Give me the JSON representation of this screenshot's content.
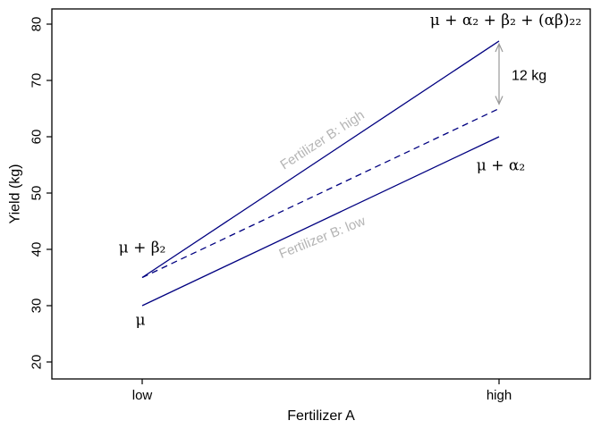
{
  "chart_data": {
    "type": "line",
    "title": "",
    "xlabel": "Fertilizer A",
    "ylabel": "Yield (kg)",
    "x_categories": [
      "low",
      "high"
    ],
    "ylim": [
      20,
      80
    ],
    "yticks": [
      20,
      30,
      40,
      50,
      60,
      70,
      80
    ],
    "grid": false,
    "legend": "none (labels drawn inline)",
    "line_color": "#000080",
    "axis_color": "#000000",
    "inline_label_gray": "#b4b4b4",
    "arrow_gray": "#999999",
    "series": [
      {
        "name": "fertilizer-b-high-observed",
        "values": [
          35,
          77
        ],
        "style": "solid",
        "color": "#000080"
      },
      {
        "name": "additive-model-expectation",
        "values": [
          35,
          65
        ],
        "style": "dashed",
        "color": "#000080"
      },
      {
        "name": "fertilizer-b-low-observed",
        "values": [
          30,
          60
        ],
        "style": "solid",
        "color": "#000080"
      }
    ],
    "interaction_effect": {
      "value": 12,
      "unit": "kg",
      "between": [
        65,
        77
      ]
    },
    "arrow": {
      "x": 1.0,
      "y_from": 76.5,
      "y_to": 65.8
    },
    "annotations": [
      {
        "id": "label-mu-alpha-beta-interaction",
        "text": "μ + α₂ + β₂ + (αβ)₂₂",
        "x": 1.231,
        "y": 80.8,
        "anchor": "end",
        "rotate": 0,
        "color": "#000000",
        "font": "serif",
        "size": 17
      },
      {
        "id": "label-12kg",
        "text": "12 kg",
        "x": 1.035,
        "y": 71.0,
        "anchor": "start",
        "rotate": 0,
        "color": "#000000",
        "font": "sans",
        "size": 16
      },
      {
        "id": "label-mu-beta",
        "text": "μ + β₂",
        "x": 0.0,
        "y": 40.4,
        "anchor": "middle",
        "rotate": 0,
        "color": "#000000",
        "font": "serif",
        "size": 17
      },
      {
        "id": "label-mu",
        "text": "μ",
        "x": -0.005,
        "y": 27.5,
        "anchor": "middle",
        "rotate": 0,
        "color": "#000000",
        "font": "serif",
        "size": 17
      },
      {
        "id": "label-mu-alpha",
        "text": "μ + α₂",
        "x": 1.005,
        "y": 55.0,
        "anchor": "middle",
        "rotate": 0,
        "color": "#000000",
        "font": "serif",
        "size": 17
      },
      {
        "id": "label-fertilizer-b-high",
        "text": "Fertilizer B: high",
        "x": 0.504,
        "y": 59.5,
        "anchor": "middle",
        "rotate": -33,
        "color": "#b4b4b4",
        "font": "sans",
        "size": 15
      },
      {
        "id": "label-fertilizer-b-low",
        "text": "Fertilizer B: low",
        "x": 0.504,
        "y": 42.2,
        "anchor": "middle",
        "rotate": -22,
        "color": "#b4b4b4",
        "font": "sans",
        "size": 15
      }
    ]
  }
}
